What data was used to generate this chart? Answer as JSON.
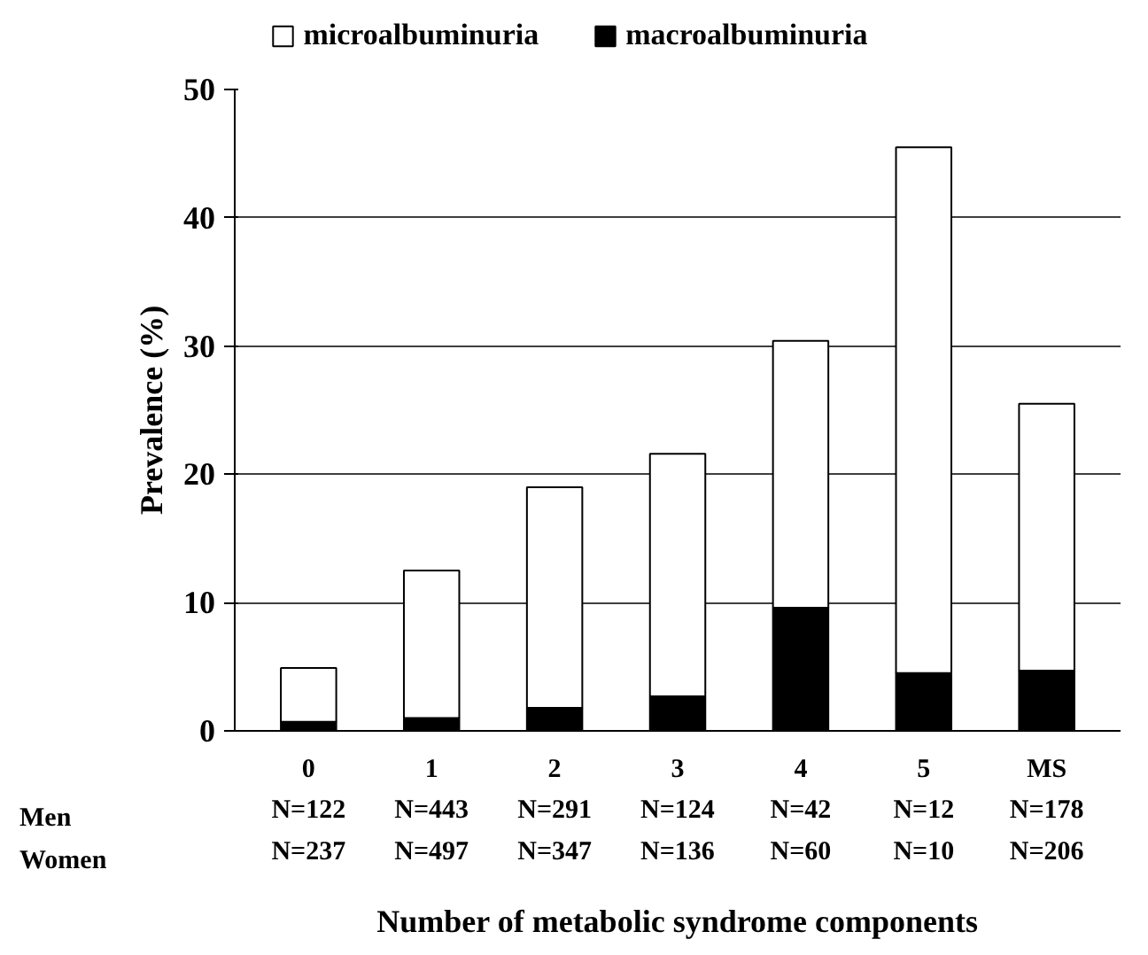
{
  "chart_data": {
    "type": "bar",
    "stacked": true,
    "xlabel": "Number of metabolic syndrome components",
    "ylabel": "Prevalence (%)",
    "categories": [
      "0\nN=122\nN=237",
      "1\nN=443\nN=497",
      "2\nN=291\nN=347",
      "3\nN=124\nN=136",
      "4\nN=42\nN=60",
      "5\nN=12\nN=10",
      "MS\nN=178\nN=206"
    ],
    "series": [
      {
        "name": "macroalbuminuria",
        "color": "#000000",
        "values": [
          0.7,
          1.0,
          1.8,
          2.7,
          9.6,
          4.5,
          4.7
        ]
      },
      {
        "name": "microalbuminuria",
        "color": "#ffffff",
        "values": [
          4.2,
          11.5,
          17.2,
          18.9,
          20.8,
          41.0,
          20.8
        ]
      }
    ],
    "ylim": [
      0,
      50
    ],
    "yticks": [
      0,
      10,
      20,
      30,
      40,
      50
    ],
    "grid": "y",
    "legend": "top",
    "annotations": [
      "Men",
      "Women"
    ]
  }
}
